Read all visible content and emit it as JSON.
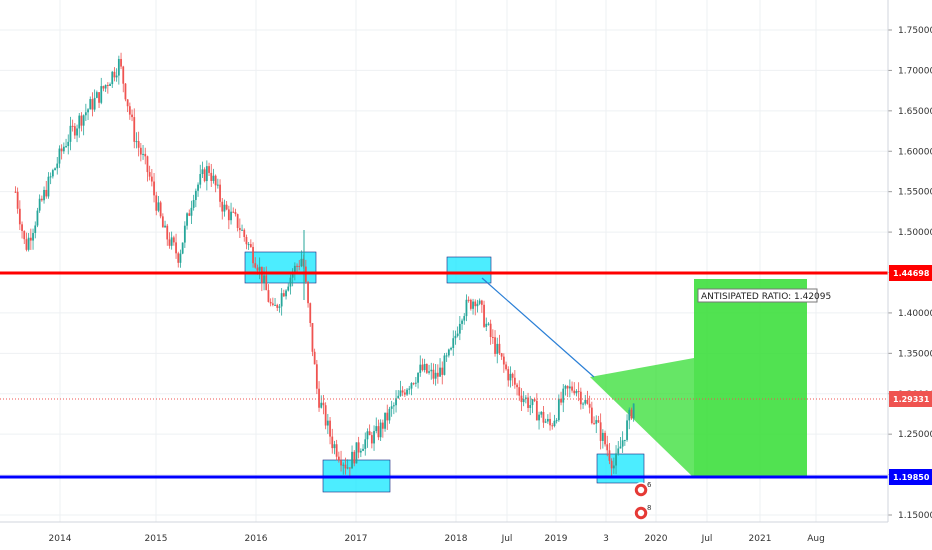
{
  "chart_data": {
    "type": "candlestick",
    "x_tick_labels": [
      "2014",
      "2015",
      "2016",
      "2017",
      "2018",
      "Jul",
      "2019",
      "3",
      "2020",
      "Jul",
      "2021",
      "Aug"
    ],
    "y_tick_labels": [
      "1.75000",
      "1.70000",
      "1.65000",
      "1.60000",
      "1.55000",
      "1.50000",
      "1.45000",
      "1.40000",
      "1.35000",
      "1.30000",
      "1.25000",
      "1.20000",
      "1.15000"
    ],
    "y_tick_values": [
      1.75,
      1.7,
      1.65,
      1.6,
      1.55,
      1.5,
      1.45,
      1.4,
      1.35,
      1.3,
      1.25,
      1.2,
      1.15
    ],
    "ylim": [
      1.138,
      1.787
    ],
    "price_path": [
      {
        "t": "2013.55",
        "p": 1.55
      },
      {
        "t": "2013.65",
        "p": 1.48
      },
      {
        "t": "2013.85",
        "p": 1.55
      },
      {
        "t": "2014.05",
        "p": 1.61
      },
      {
        "t": "2014.2",
        "p": 1.64
      },
      {
        "t": "2014.4",
        "p": 1.67
      },
      {
        "t": "2014.6",
        "p": 1.71
      },
      {
        "t": "2014.75",
        "p": 1.62
      },
      {
        "t": "2014.9",
        "p": 1.57
      },
      {
        "t": "2015.05",
        "p": 1.5
      },
      {
        "t": "2015.2",
        "p": 1.47
      },
      {
        "t": "2015.35",
        "p": 1.55
      },
      {
        "t": "2015.5",
        "p": 1.58
      },
      {
        "t": "2015.65",
        "p": 1.53
      },
      {
        "t": "2015.8",
        "p": 1.51
      },
      {
        "t": "2016.0",
        "p": 1.46
      },
      {
        "t": "2016.15",
        "p": 1.4
      },
      {
        "t": "2016.3",
        "p": 1.44
      },
      {
        "t": "2016.45",
        "p": 1.47
      },
      {
        "t": "2016.6",
        "p": 1.3
      },
      {
        "t": "2016.75",
        "p": 1.24
      },
      {
        "t": "2016.9",
        "p": 1.21
      },
      {
        "t": "2017.05",
        "p": 1.24
      },
      {
        "t": "2017.2",
        "p": 1.25
      },
      {
        "t": "2017.35",
        "p": 1.28
      },
      {
        "t": "2017.5",
        "p": 1.31
      },
      {
        "t": "2017.65",
        "p": 1.33
      },
      {
        "t": "2017.8",
        "p": 1.32
      },
      {
        "t": "2017.95",
        "p": 1.35
      },
      {
        "t": "2018.05",
        "p": 1.4
      },
      {
        "t": "2018.2",
        "p": 1.42
      },
      {
        "t": "2018.35",
        "p": 1.37
      },
      {
        "t": "2018.5",
        "p": 1.33
      },
      {
        "t": "2018.65",
        "p": 1.3
      },
      {
        "t": "2018.8",
        "p": 1.28
      },
      {
        "t": "2018.95",
        "p": 1.26
      },
      {
        "t": "2019.1",
        "p": 1.3
      },
      {
        "t": "2019.2",
        "p": 1.31
      },
      {
        "t": "2019.35",
        "p": 1.28
      },
      {
        "t": "2019.5",
        "p": 1.24
      },
      {
        "t": "2019.6",
        "p": 1.21
      },
      {
        "t": "2019.7",
        "p": 1.25
      },
      {
        "t": "2019.8",
        "p": 1.29
      }
    ],
    "series": [
      {
        "name": "",
        "kind": "horizontal-level",
        "value": 1.44698,
        "color": "#ff0000"
      },
      {
        "name": "",
        "kind": "horizontal-level",
        "value": 1.1985,
        "color": "#0000ff"
      },
      {
        "name": "",
        "kind": "last-price",
        "value": 1.29331,
        "color": "#ef5350"
      }
    ],
    "price_labels": [
      "1.44698",
      "1.19850",
      "1.29331"
    ],
    "annotations": [
      {
        "text": "ANTISIPATED RATIO: 1.42095"
      }
    ],
    "badges": [
      {
        "text": "6"
      },
      {
        "text": "8"
      }
    ],
    "grid": true,
    "legend": "none",
    "colors": {
      "up_candle": "#26a69a",
      "down_candle": "#ef5350",
      "support_zone": "#00e5ff",
      "target_zone": "#33dd33",
      "trendline": "#2a7fd6",
      "grid": "#eef0f3",
      "axis": "#d1d4dc",
      "background": "#ffffff"
    }
  }
}
